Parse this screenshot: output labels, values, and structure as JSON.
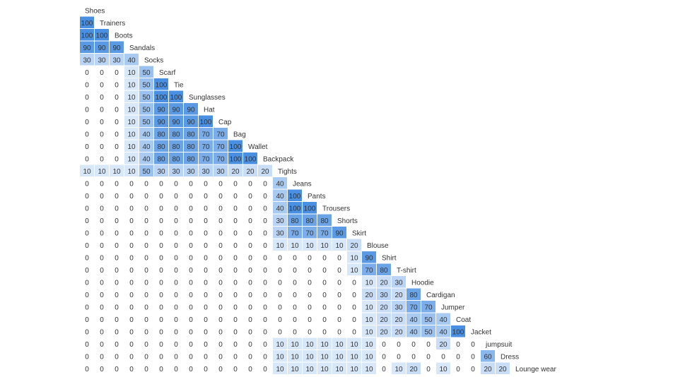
{
  "chart_data": {
    "type": "heatmap",
    "title": "",
    "layout": "lower-triangular",
    "labels": [
      "Shoes",
      "Trainers",
      "Boots",
      "Sandals",
      "Socks",
      "Scarf",
      "Tie",
      "Sunglasses",
      "Hat",
      "Cap",
      "Bag",
      "Wallet",
      "Backpack",
      "Tights",
      "Jeans",
      "Pants",
      "Trousers",
      "Shorts",
      "Skirt",
      "Blouse",
      "Shirt",
      "T-shirt",
      "Hoodie",
      "Cardigan",
      "Jumper",
      "Coat",
      "Jacket",
      "jumpsuit",
      "Dress",
      "Lounge wear"
    ],
    "rows": [
      [],
      [
        100
      ],
      [
        100,
        100
      ],
      [
        90,
        90,
        90
      ],
      [
        30,
        30,
        30,
        40
      ],
      [
        0,
        0,
        0,
        10,
        50
      ],
      [
        0,
        0,
        0,
        10,
        50,
        100
      ],
      [
        0,
        0,
        0,
        10,
        50,
        100,
        100
      ],
      [
        0,
        0,
        0,
        10,
        50,
        90,
        90,
        90
      ],
      [
        0,
        0,
        0,
        10,
        50,
        90,
        90,
        90,
        100
      ],
      [
        0,
        0,
        0,
        10,
        40,
        80,
        80,
        80,
        70,
        70
      ],
      [
        0,
        0,
        0,
        10,
        40,
        80,
        80,
        80,
        70,
        70,
        100
      ],
      [
        0,
        0,
        0,
        10,
        40,
        80,
        80,
        80,
        70,
        70,
        100,
        100
      ],
      [
        10,
        10,
        10,
        10,
        50,
        30,
        30,
        30,
        30,
        30,
        20,
        20,
        20
      ],
      [
        0,
        0,
        0,
        0,
        0,
        0,
        0,
        0,
        0,
        0,
        0,
        0,
        0,
        40
      ],
      [
        0,
        0,
        0,
        0,
        0,
        0,
        0,
        0,
        0,
        0,
        0,
        0,
        0,
        40,
        100
      ],
      [
        0,
        0,
        0,
        0,
        0,
        0,
        0,
        0,
        0,
        0,
        0,
        0,
        0,
        40,
        100,
        100
      ],
      [
        0,
        0,
        0,
        0,
        0,
        0,
        0,
        0,
        0,
        0,
        0,
        0,
        0,
        30,
        80,
        80,
        80
      ],
      [
        0,
        0,
        0,
        0,
        0,
        0,
        0,
        0,
        0,
        0,
        0,
        0,
        0,
        30,
        70,
        70,
        70,
        90
      ],
      [
        0,
        0,
        0,
        0,
        0,
        0,
        0,
        0,
        0,
        0,
        0,
        0,
        0,
        10,
        10,
        10,
        10,
        10,
        20
      ],
      [
        0,
        0,
        0,
        0,
        0,
        0,
        0,
        0,
        0,
        0,
        0,
        0,
        0,
        0,
        0,
        0,
        0,
        0,
        10,
        90
      ],
      [
        0,
        0,
        0,
        0,
        0,
        0,
        0,
        0,
        0,
        0,
        0,
        0,
        0,
        0,
        0,
        0,
        0,
        0,
        10,
        70,
        80
      ],
      [
        0,
        0,
        0,
        0,
        0,
        0,
        0,
        0,
        0,
        0,
        0,
        0,
        0,
        0,
        0,
        0,
        0,
        0,
        0,
        10,
        20,
        30
      ],
      [
        0,
        0,
        0,
        0,
        0,
        0,
        0,
        0,
        0,
        0,
        0,
        0,
        0,
        0,
        0,
        0,
        0,
        0,
        0,
        20,
        30,
        20,
        80
      ],
      [
        0,
        0,
        0,
        0,
        0,
        0,
        0,
        0,
        0,
        0,
        0,
        0,
        0,
        0,
        0,
        0,
        0,
        0,
        0,
        10,
        20,
        30,
        70,
        70
      ],
      [
        0,
        0,
        0,
        0,
        0,
        0,
        0,
        0,
        0,
        0,
        0,
        0,
        0,
        0,
        0,
        0,
        0,
        0,
        0,
        10,
        20,
        20,
        40,
        50,
        40
      ],
      [
        0,
        0,
        0,
        0,
        0,
        0,
        0,
        0,
        0,
        0,
        0,
        0,
        0,
        0,
        0,
        0,
        0,
        0,
        0,
        10,
        20,
        20,
        40,
        50,
        40,
        100
      ],
      [
        0,
        0,
        0,
        0,
        0,
        0,
        0,
        0,
        0,
        0,
        0,
        0,
        0,
        10,
        10,
        10,
        10,
        10,
        10,
        10,
        0,
        0,
        0,
        0,
        20,
        0,
        0
      ],
      [
        0,
        0,
        0,
        0,
        0,
        0,
        0,
        0,
        0,
        0,
        0,
        0,
        0,
        10,
        10,
        10,
        10,
        10,
        10,
        10,
        0,
        0,
        0,
        0,
        0,
        0,
        0,
        60
      ],
      [
        0,
        0,
        0,
        0,
        0,
        0,
        0,
        0,
        0,
        0,
        0,
        0,
        0,
        10,
        10,
        10,
        10,
        10,
        10,
        10,
        0,
        10,
        20,
        0,
        10,
        0,
        0,
        20,
        20
      ]
    ],
    "value_range": [
      0,
      100
    ],
    "color_scale": [
      "#ffffff",
      "#4a90e2"
    ]
  }
}
